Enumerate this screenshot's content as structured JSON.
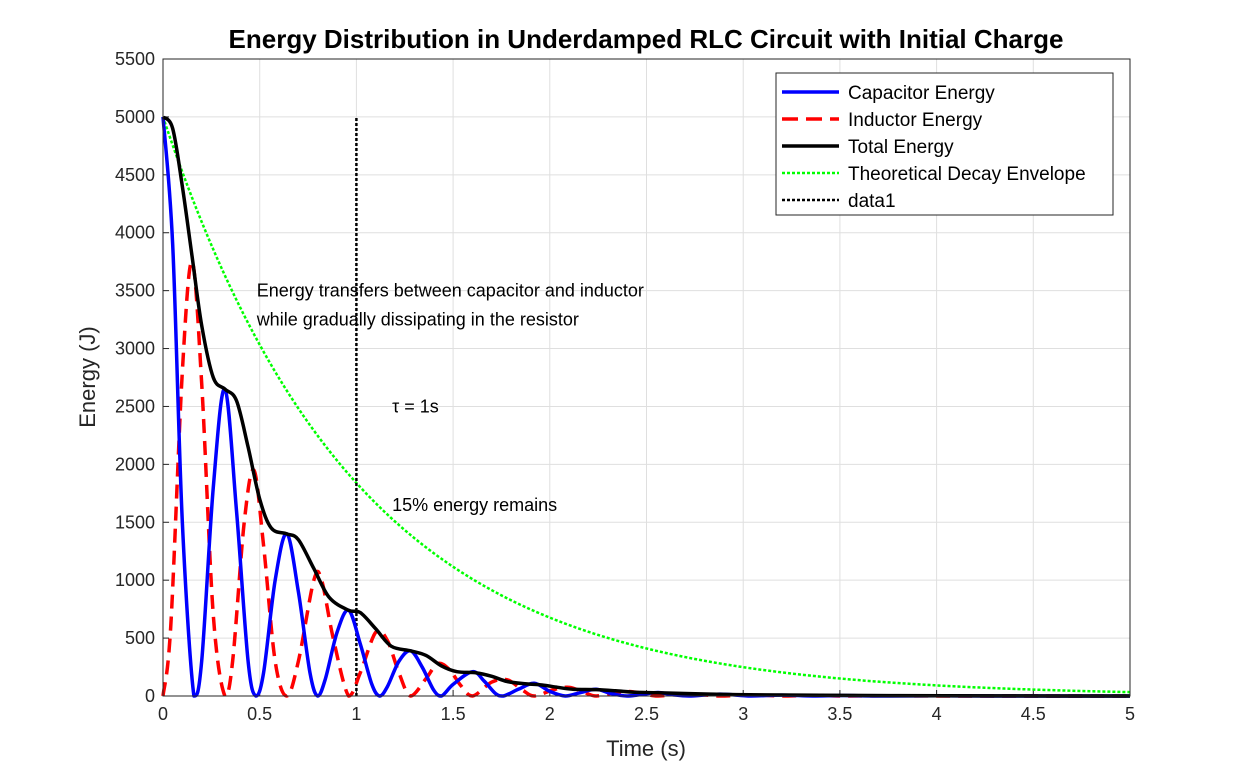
{
  "chart_data": {
    "type": "line",
    "title": "Energy Distribution in Underdamped RLC Circuit with Initial Charge",
    "xlabel": "Time (s)",
    "ylabel": "Energy (J)",
    "xlim": [
      0,
      5
    ],
    "ylim": [
      0,
      5500
    ],
    "x_ticks": [
      "0",
      "0.5",
      "1",
      "1.5",
      "2",
      "2.5",
      "3",
      "3.5",
      "4",
      "4.5",
      "5"
    ],
    "y_ticks": [
      "0",
      "500",
      "1000",
      "1500",
      "2000",
      "2500",
      "3000",
      "3500",
      "4000",
      "4500",
      "5000",
      "5500"
    ],
    "grid": true,
    "legend_position": "top-right",
    "colors": {
      "capacitor": "#0000ff",
      "inductor": "#ff0000",
      "total": "#000000",
      "envelope": "#00ff00",
      "marker": "#000000"
    },
    "series": [
      {
        "name": "Capacitor Energy",
        "style": "solid",
        "points": [
          [
            0,
            5000
          ],
          [
            0.05,
            3900
          ],
          [
            0.1,
            1500
          ],
          [
            0.16,
            0
          ],
          [
            0.2,
            300
          ],
          [
            0.26,
            1800
          ],
          [
            0.32,
            2650
          ],
          [
            0.38,
            1600
          ],
          [
            0.44,
            300
          ],
          [
            0.48,
            0
          ],
          [
            0.52,
            200
          ],
          [
            0.58,
            1000
          ],
          [
            0.64,
            1400
          ],
          [
            0.7,
            900
          ],
          [
            0.76,
            200
          ],
          [
            0.8,
            0
          ],
          [
            0.84,
            150
          ],
          [
            0.9,
            550
          ],
          [
            0.96,
            740
          ],
          [
            1.02,
            450
          ],
          [
            1.08,
            100
          ],
          [
            1.12,
            0
          ],
          [
            1.16,
            80
          ],
          [
            1.22,
            300
          ],
          [
            1.28,
            390
          ],
          [
            1.34,
            250
          ],
          [
            1.4,
            50
          ],
          [
            1.44,
            0
          ],
          [
            1.5,
            100
          ],
          [
            1.6,
            210
          ],
          [
            1.66,
            130
          ],
          [
            1.72,
            20
          ],
          [
            1.76,
            0
          ],
          [
            1.84,
            60
          ],
          [
            1.92,
            110
          ],
          [
            2.0,
            40
          ],
          [
            2.08,
            0
          ],
          [
            2.16,
            30
          ],
          [
            2.24,
            58
          ],
          [
            2.32,
            20
          ],
          [
            2.4,
            0
          ],
          [
            2.48,
            15
          ],
          [
            2.56,
            30
          ],
          [
            2.64,
            10
          ],
          [
            2.72,
            0
          ],
          [
            2.88,
            16
          ],
          [
            3.04,
            0
          ],
          [
            3.2,
            8
          ],
          [
            3.36,
            0
          ],
          [
            3.52,
            4
          ],
          [
            3.7,
            0
          ],
          [
            4.0,
            2
          ],
          [
            4.3,
            0
          ],
          [
            5.0,
            0
          ]
        ]
      },
      {
        "name": "Inductor Energy",
        "style": "dashed",
        "points": [
          [
            0,
            0
          ],
          [
            0.04,
            600
          ],
          [
            0.1,
            2800
          ],
          [
            0.15,
            3750
          ],
          [
            0.2,
            2700
          ],
          [
            0.26,
            700
          ],
          [
            0.32,
            0
          ],
          [
            0.36,
            300
          ],
          [
            0.42,
            1500
          ],
          [
            0.47,
            1950
          ],
          [
            0.52,
            1300
          ],
          [
            0.58,
            300
          ],
          [
            0.64,
            0
          ],
          [
            0.7,
            300
          ],
          [
            0.78,
            1000
          ],
          [
            0.82,
            1000
          ],
          [
            0.88,
            500
          ],
          [
            0.96,
            0
          ],
          [
            1.02,
            200
          ],
          [
            1.1,
            550
          ],
          [
            1.16,
            480
          ],
          [
            1.22,
            200
          ],
          [
            1.28,
            0
          ],
          [
            1.36,
            150
          ],
          [
            1.42,
            280
          ],
          [
            1.48,
            230
          ],
          [
            1.54,
            90
          ],
          [
            1.6,
            0
          ],
          [
            1.7,
            120
          ],
          [
            1.78,
            140
          ],
          [
            1.86,
            50
          ],
          [
            1.92,
            0
          ],
          [
            2.02,
            55
          ],
          [
            2.1,
            75
          ],
          [
            2.18,
            30
          ],
          [
            2.24,
            0
          ],
          [
            2.34,
            30
          ],
          [
            2.42,
            38
          ],
          [
            2.5,
            15
          ],
          [
            2.56,
            0
          ],
          [
            2.72,
            18
          ],
          [
            2.88,
            0
          ],
          [
            3.04,
            10
          ],
          [
            3.2,
            0
          ],
          [
            3.36,
            5
          ],
          [
            3.52,
            0
          ],
          [
            3.8,
            2
          ],
          [
            4.1,
            0
          ],
          [
            5.0,
            0
          ]
        ]
      },
      {
        "name": "Total Energy",
        "style": "solid",
        "points": [
          [
            0,
            5000
          ],
          [
            0.05,
            4900
          ],
          [
            0.1,
            4400
          ],
          [
            0.15,
            3800
          ],
          [
            0.2,
            3200
          ],
          [
            0.26,
            2750
          ],
          [
            0.32,
            2650
          ],
          [
            0.38,
            2550
          ],
          [
            0.44,
            2150
          ],
          [
            0.5,
            1700
          ],
          [
            0.56,
            1450
          ],
          [
            0.64,
            1400
          ],
          [
            0.7,
            1350
          ],
          [
            0.78,
            1100
          ],
          [
            0.86,
            850
          ],
          [
            0.96,
            740
          ],
          [
            1.02,
            720
          ],
          [
            1.1,
            580
          ],
          [
            1.18,
            430
          ],
          [
            1.28,
            390
          ],
          [
            1.36,
            350
          ],
          [
            1.44,
            260
          ],
          [
            1.52,
            210
          ],
          [
            1.62,
            200
          ],
          [
            1.7,
            170
          ],
          [
            1.78,
            125
          ],
          [
            1.88,
            105
          ],
          [
            1.96,
            95
          ],
          [
            2.04,
            75
          ],
          [
            2.12,
            58
          ],
          [
            2.24,
            55
          ],
          [
            2.34,
            45
          ],
          [
            2.44,
            32
          ],
          [
            2.56,
            28
          ],
          [
            2.7,
            22
          ],
          [
            2.9,
            14
          ],
          [
            3.1,
            10
          ],
          [
            3.4,
            6
          ],
          [
            3.8,
            3
          ],
          [
            4.3,
            1
          ],
          [
            5.0,
            0
          ]
        ]
      },
      {
        "name": "Theoretical Decay Envelope",
        "style": "dotted",
        "function": "5000*exp(-x/1)"
      },
      {
        "name": "data1",
        "style": "dotted",
        "points": [
          [
            1,
            0
          ],
          [
            1,
            5000
          ]
        ]
      }
    ],
    "annotations": [
      {
        "text": "Energy transfers between capacitor and inductor",
        "x": 0.5,
        "y": 3500
      },
      {
        "text": "while gradually dissipating in the resistor",
        "x": 0.5,
        "y": 3250
      },
      {
        "text": "τ = 1s",
        "x": 1.2,
        "y": 2500
      },
      {
        "text": "15% energy remains",
        "x": 1.2,
        "y": 1650
      }
    ]
  }
}
